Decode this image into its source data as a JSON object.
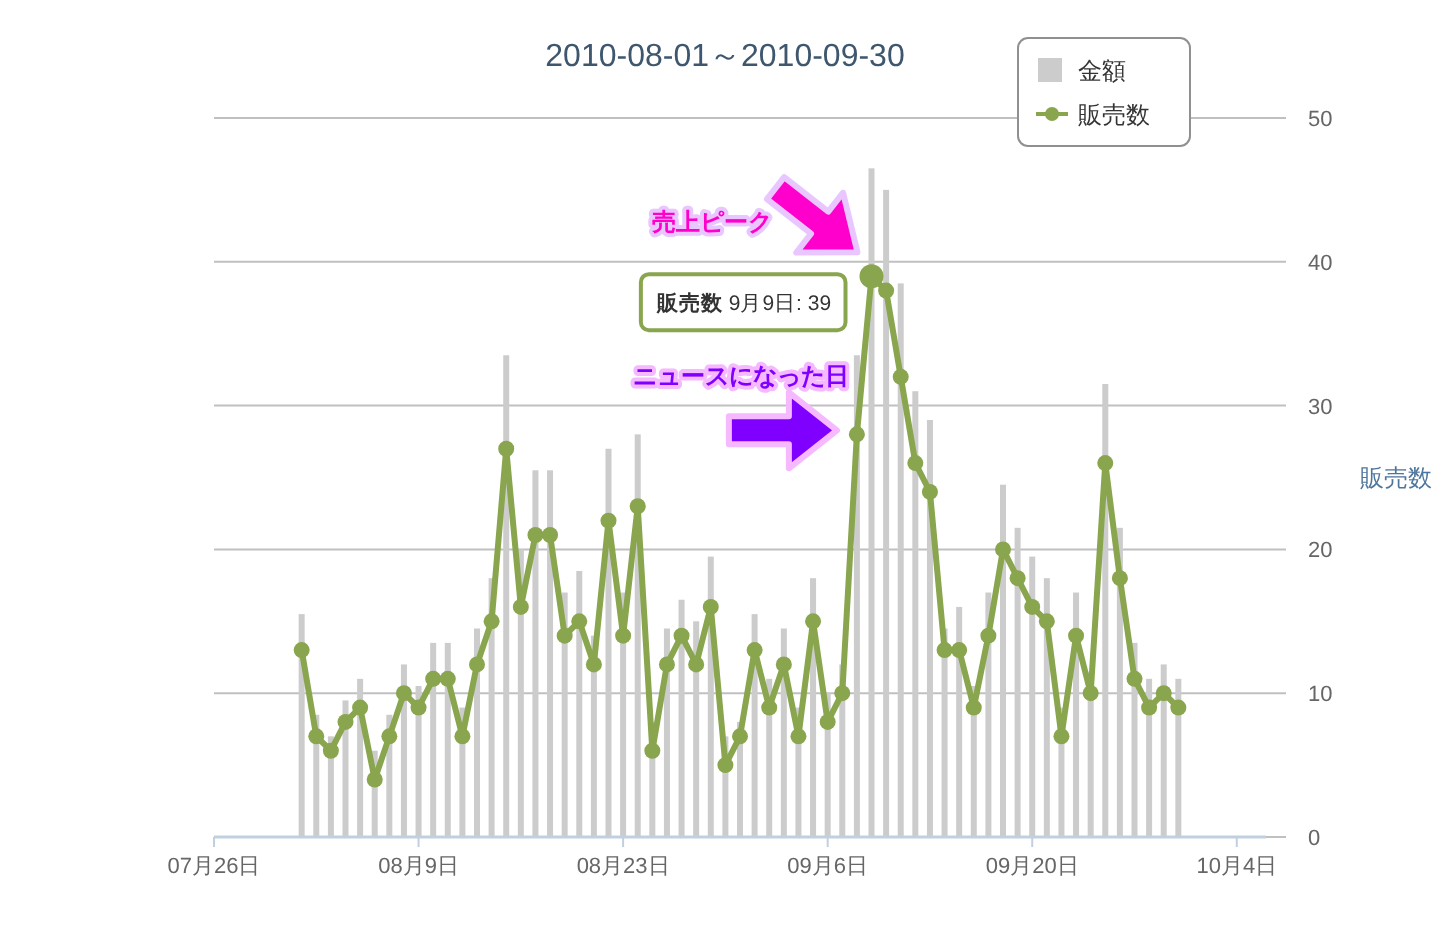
{
  "chart_data": {
    "type": "bar",
    "title": "2010-08-01～2010-09-30",
    "ylabel": "販売数",
    "x": [
      "2010-08-01",
      "2010-08-02",
      "2010-08-03",
      "2010-08-04",
      "2010-08-05",
      "2010-08-06",
      "2010-08-07",
      "2010-08-08",
      "2010-08-09",
      "2010-08-10",
      "2010-08-11",
      "2010-08-12",
      "2010-08-13",
      "2010-08-14",
      "2010-08-15",
      "2010-08-16",
      "2010-08-17",
      "2010-08-18",
      "2010-08-19",
      "2010-08-20",
      "2010-08-21",
      "2010-08-22",
      "2010-08-23",
      "2010-08-24",
      "2010-08-25",
      "2010-08-26",
      "2010-08-27",
      "2010-08-28",
      "2010-08-29",
      "2010-08-30",
      "2010-08-31",
      "2010-09-01",
      "2010-09-02",
      "2010-09-03",
      "2010-09-04",
      "2010-09-05",
      "2010-09-06",
      "2010-09-07",
      "2010-09-08",
      "2010-09-09",
      "2010-09-10",
      "2010-09-11",
      "2010-09-12",
      "2010-09-13",
      "2010-09-14",
      "2010-09-15",
      "2010-09-16",
      "2010-09-17",
      "2010-09-18",
      "2010-09-19",
      "2010-09-20",
      "2010-09-21",
      "2010-09-22",
      "2010-09-23",
      "2010-09-24",
      "2010-09-25",
      "2010-09-26",
      "2010-09-27",
      "2010-09-28",
      "2010-09-29",
      "2010-09-30"
    ],
    "xlim": [
      "2010-07-26",
      "2010-10-06"
    ],
    "xticks": [
      {
        "value": "2010-07-26",
        "label": "07月26日"
      },
      {
        "value": "2010-08-09",
        "label": "08月9日"
      },
      {
        "value": "2010-08-23",
        "label": "08月23日"
      },
      {
        "value": "2010-09-06",
        "label": "09月6日"
      },
      {
        "value": "2010-09-20",
        "label": "09月20日"
      },
      {
        "value": "2010-10-04",
        "label": "10月4日"
      }
    ],
    "ylim": [
      0,
      50
    ],
    "yticks": [
      0,
      10,
      20,
      30,
      40,
      50
    ],
    "grid": "y",
    "legend": "top right",
    "marker": "circle",
    "series": [
      {
        "name": "金額",
        "color": "#cccccc",
        "values": [
          15.5,
          8.5,
          7,
          9.5,
          11,
          6,
          8.5,
          12,
          10.5,
          13.5,
          13.5,
          9,
          14.5,
          18,
          33.5,
          20,
          25.5,
          25.5,
          17,
          18.5,
          14,
          27,
          17,
          28,
          8,
          14.5,
          16.5,
          15,
          19.5,
          7,
          8,
          15.5,
          11,
          14.5,
          9,
          18,
          10,
          12,
          33.5,
          46.5,
          45,
          38.5,
          31,
          29,
          14.5,
          16,
          10.5,
          17,
          24.5,
          21.5,
          19.5,
          18,
          9,
          17,
          11.5,
          31.5,
          21.5,
          13.5,
          11,
          12,
          11
        ]
      },
      {
        "name": "販売数",
        "type": "line",
        "color": "#89a54e",
        "values": [
          13,
          7,
          6,
          8,
          9,
          4,
          7,
          10,
          9,
          11,
          11,
          7,
          12,
          15,
          27,
          16,
          21,
          21,
          14,
          15,
          12,
          22,
          14,
          23,
          6,
          12,
          14,
          12,
          16,
          5,
          7,
          13,
          9,
          12,
          7,
          15,
          8,
          10,
          28,
          39,
          38,
          32,
          26,
          24,
          13,
          13,
          9,
          14,
          20,
          18,
          16,
          15,
          7,
          14,
          10,
          26,
          18,
          11,
          9,
          10,
          9
        ]
      }
    ],
    "annotations": [
      {
        "text": "販売数 9月9日: 39",
        "x": "2010-09-09",
        "y": 39
      },
      "売上ピーク",
      {
        "text": "ニュースになった日",
        "x": "2010-09-08",
        "y": 28
      }
    ]
  }
}
